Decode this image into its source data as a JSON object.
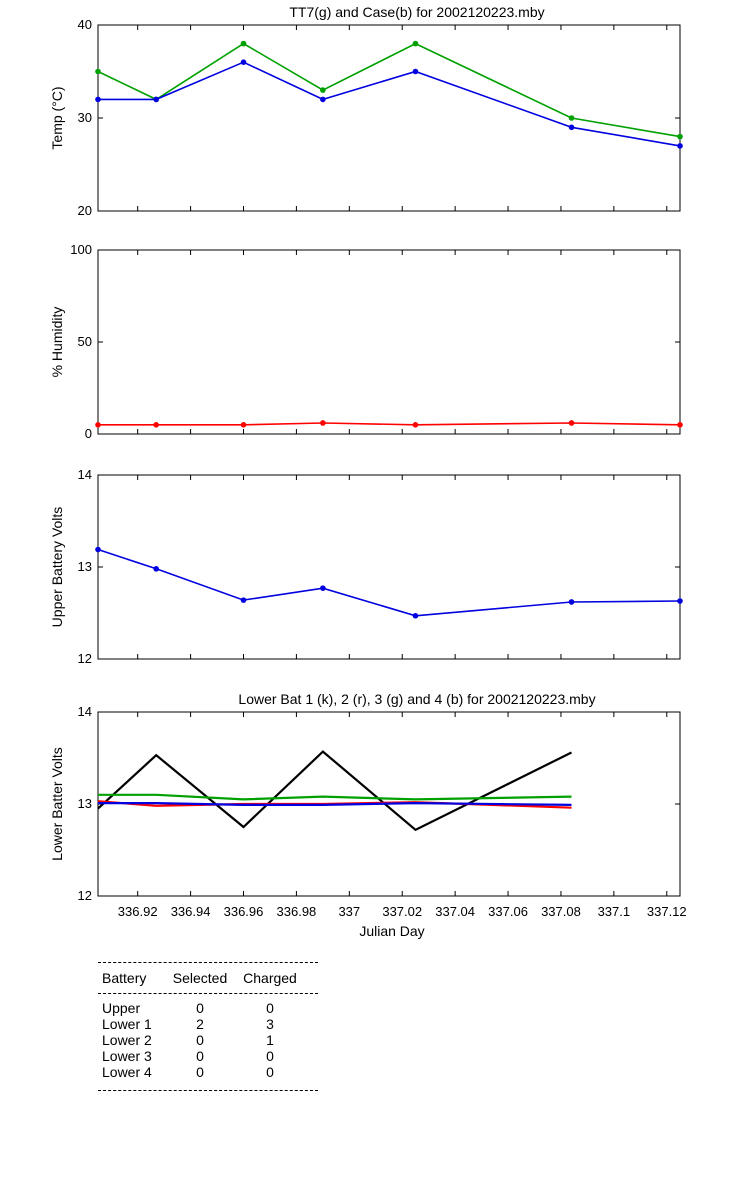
{
  "chart_data": [
    {
      "type": "line",
      "title": "TT7(g) and Case(b) for 2002120223.mby",
      "ylabel": "Temp  (°C)",
      "xlabel": "",
      "xlim": [
        336.905,
        337.125
      ],
      "ylim": [
        20,
        40
      ],
      "yticks": [
        20,
        30,
        40
      ],
      "x": [
        336.905,
        336.927,
        336.96,
        336.99,
        337.025,
        337.084,
        337.125
      ],
      "series": [
        {
          "key": "tt7",
          "color": "#00a000",
          "values": [
            35,
            32,
            38,
            33,
            38,
            30,
            28
          ]
        },
        {
          "key": "case",
          "color": "#0000e0",
          "values": [
            32,
            32,
            36,
            32,
            35,
            29,
            27
          ]
        }
      ]
    },
    {
      "type": "line",
      "title": "",
      "ylabel": "% Humidity",
      "xlabel": "",
      "xlim": [
        336.905,
        337.125
      ],
      "ylim": [
        0,
        100
      ],
      "yticks": [
        0,
        50,
        100
      ],
      "x": [
        336.905,
        336.927,
        336.96,
        336.99,
        337.025,
        337.084,
        337.125
      ],
      "series": [
        {
          "key": "humidity",
          "color": "#ff0000",
          "values": [
            5,
            5,
            5,
            6,
            5,
            6,
            5
          ]
        }
      ]
    },
    {
      "type": "line",
      "title": "",
      "ylabel": "Upper Battery Volts",
      "xlabel": "",
      "xlim": [
        336.905,
        337.125
      ],
      "ylim": [
        12,
        14
      ],
      "yticks": [
        12,
        13,
        14
      ],
      "x": [
        336.905,
        336.927,
        336.96,
        336.99,
        337.025,
        337.084,
        337.125
      ],
      "series": [
        {
          "key": "upper",
          "color": "#0000e0",
          "values": [
            13.19,
            12.98,
            12.64,
            12.77,
            12.47,
            12.62,
            12.63
          ]
        }
      ]
    },
    {
      "type": "line",
      "title": "Lower Bat 1 (k), 2 (r), 3 (g) and 4 (b) for 2002120223.mby",
      "ylabel": "Lower Batter Volts",
      "xlabel": "Julian Day",
      "xlim": [
        336.905,
        337.125
      ],
      "ylim": [
        12,
        14
      ],
      "yticks": [
        12,
        13,
        14
      ],
      "xticks": [
        336.92,
        336.94,
        336.96,
        336.98,
        337,
        337.02,
        337.04,
        337.06,
        337.08,
        337.1,
        337.12
      ],
      "xticklabels": [
        "336.92",
        "336.94",
        "336.96",
        "336.98",
        "337",
        "337.02",
        "337.04",
        "337.06",
        "337.08",
        "337.1",
        "337.12"
      ],
      "x": [
        336.905,
        336.927,
        336.96,
        336.99,
        337.025,
        337.084
      ],
      "series": [
        {
          "key": "lower1",
          "color": "#000000",
          "values": [
            12.95,
            13.53,
            12.75,
            13.57,
            12.72,
            13.56
          ]
        },
        {
          "key": "lower2",
          "color": "#ff0000",
          "values": [
            13.03,
            12.98,
            13.0,
            13.0,
            13.02,
            12.96
          ]
        },
        {
          "key": "lower3",
          "color": "#00a000",
          "values": [
            13.1,
            13.1,
            13.05,
            13.08,
            13.05,
            13.08
          ]
        },
        {
          "key": "lower4",
          "color": "#0000e0",
          "values": [
            13.01,
            13.01,
            12.99,
            12.99,
            13.01,
            12.99
          ]
        }
      ]
    }
  ],
  "table": {
    "headers": {
      "battery": "Battery",
      "selected": "Selected",
      "charged": "Charged"
    },
    "rows": [
      {
        "battery": "Upper",
        "selected": "0",
        "charged": "0"
      },
      {
        "battery": "Lower 1",
        "selected": "2",
        "charged": "3"
      },
      {
        "battery": "Lower 2",
        "selected": "0",
        "charged": "1"
      },
      {
        "battery": "Lower 3",
        "selected": "0",
        "charged": "0"
      },
      {
        "battery": "Lower 4",
        "selected": "0",
        "charged": "0"
      }
    ]
  }
}
